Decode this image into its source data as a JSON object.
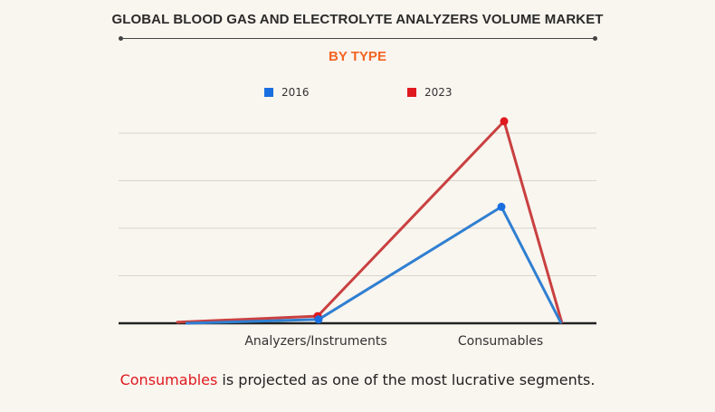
{
  "header": {
    "title": "GLOBAL BLOOD GAS AND ELECTROLYTE ANALYZERS VOLUME MARKET",
    "subtitle": "BY TYPE"
  },
  "caption": {
    "highlight": "Consumables",
    "rest": " is projected as one of the most lucrative segments."
  },
  "colors": {
    "series_2016": "#2f7fd1",
    "series_2023": "#c94040",
    "marker_2016": "#1a6fe0",
    "marker_2023": "#e0191f",
    "title": "#2b2b2b",
    "subtitle": "#f26522",
    "highlight": "#e0191f",
    "grid": "#d9d4cc",
    "axis": "#222222"
  },
  "chart_data": {
    "type": "line",
    "title": "GLOBAL BLOOD GAS AND ELECTROLYTE ANALYZERS VOLUME MARKET",
    "subtitle": "BY TYPE",
    "xlabel": "",
    "ylabel": "",
    "categories": [
      "",
      "Analyzers/Instruments",
      "Consumables",
      ""
    ],
    "tick_labels": [
      "Analyzers/Instruments",
      "Consumables"
    ],
    "series": [
      {
        "name": "2016",
        "values": [
          0,
          0.08,
          2.45,
          0
        ]
      },
      {
        "name": "2023",
        "values": [
          0.02,
          0.15,
          4.25,
          0
        ]
      }
    ],
    "ylim": [
      0,
      4.1
    ],
    "grid": true,
    "gridlines": [
      1,
      2,
      3,
      4
    ],
    "legend_position": "top"
  }
}
